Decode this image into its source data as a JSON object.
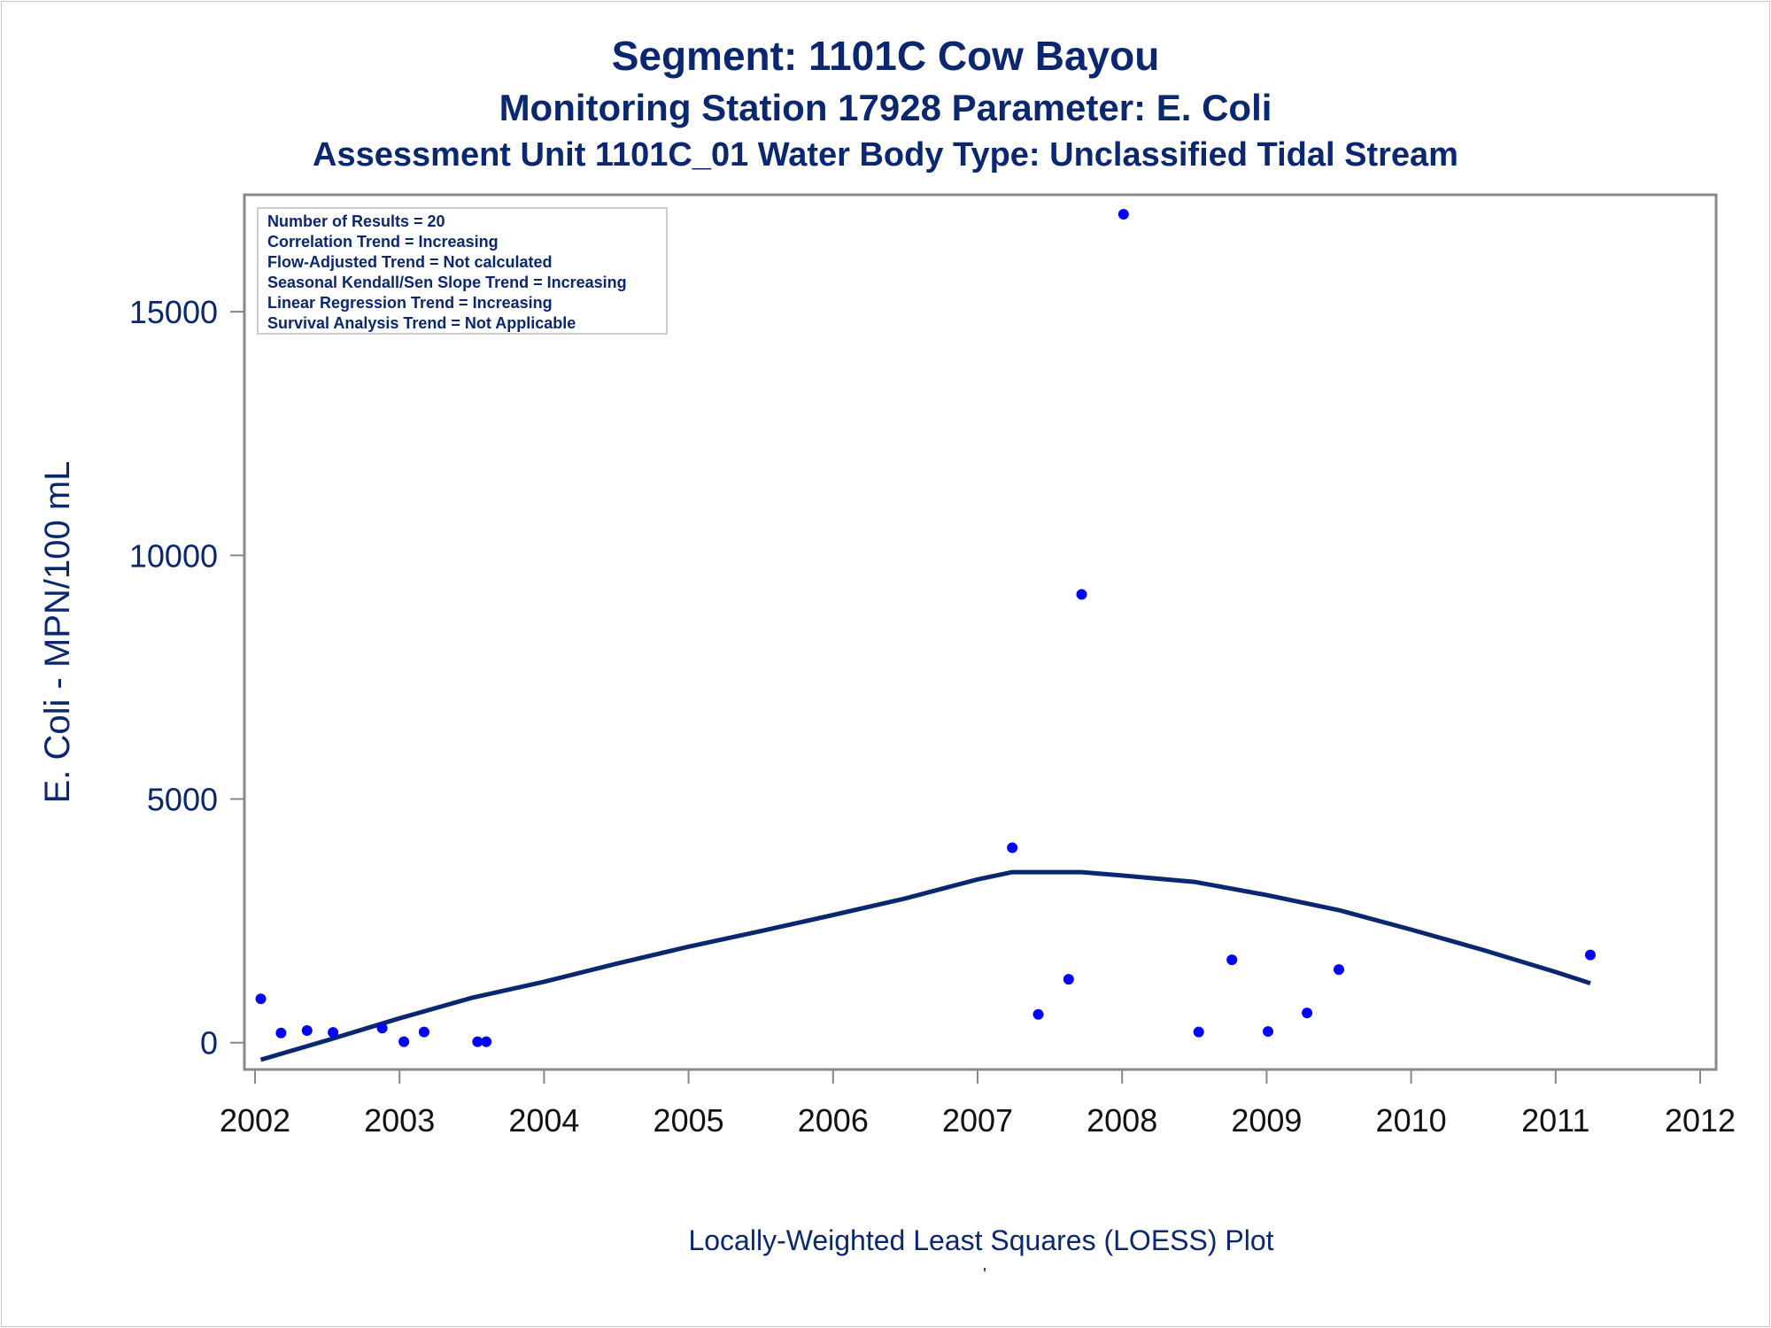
{
  "titles": {
    "line1": "Segment: 1101C  Cow Bayou",
    "line2": "Monitoring Station 17928 Parameter: E. Coli",
    "line3": "Assessment Unit 1101C_01   Water Body Type: Unclassified Tidal Stream"
  },
  "footer": "Locally-Weighted Least Squares (LOESS) Plot",
  "footer_mark": "'",
  "legend_lines": [
    "Number of Results = 20",
    "Correlation Trend = Increasing",
    "Flow-Adjusted Trend = Not calculated",
    "Seasonal Kendall/Sen Slope Trend = Increasing",
    "Linear Regression Trend = Increasing",
    "Survival Analysis Trend = Not Applicable"
  ],
  "colors": {
    "title": "#0a2770",
    "point": "#0000ff",
    "loess": "#0a2770",
    "axis": "#888888",
    "tick_label_x": "#111111",
    "tick_label_y": "#0a2770"
  },
  "chart_data": {
    "type": "scatter",
    "title": "Segment: 1101C  Cow Bayou",
    "xlabel": "",
    "ylabel": "E. Coli - MPN/100 mL",
    "xlim": [
      2002,
      2012
    ],
    "ylim": [
      -550,
      17400
    ],
    "x_ticks": [
      2002,
      2003,
      2004,
      2005,
      2006,
      2007,
      2008,
      2009,
      2010,
      2011,
      2012
    ],
    "y_ticks": [
      0,
      5000,
      10000,
      15000
    ],
    "grid": false,
    "legend_placement": "top-left",
    "series": [
      {
        "kind": "points",
        "x": [
          2002.04,
          2002.18,
          2002.36,
          2002.54,
          2002.88,
          2003.03,
          2003.17,
          2003.54,
          2003.6,
          2007.24,
          2007.42,
          2007.63,
          2007.72,
          2008.01,
          2008.53,
          2008.76,
          2009.01,
          2009.28,
          2009.5,
          2011.24
        ],
        "y": [
          900,
          200,
          250,
          210,
          300,
          20,
          220,
          20,
          20,
          4000,
          580,
          1300,
          9200,
          17000,
          220,
          1700,
          230,
          610,
          1500,
          1800
        ]
      },
      {
        "kind": "loess",
        "x": [
          2002.04,
          2002.5,
          2003.0,
          2003.5,
          2004.0,
          2004.5,
          2005.0,
          2005.5,
          2006.0,
          2006.5,
          2007.0,
          2007.24,
          2007.5,
          2007.72,
          2008.0,
          2008.5,
          2009.0,
          2009.5,
          2010.0,
          2010.5,
          2011.0,
          2011.24
        ],
        "y": [
          -350,
          50,
          500,
          920,
          1250,
          1620,
          1970,
          2290,
          2620,
          2960,
          3350,
          3500,
          3500,
          3500,
          3430,
          3300,
          3030,
          2720,
          2320,
          1900,
          1450,
          1220
        ]
      }
    ]
  }
}
